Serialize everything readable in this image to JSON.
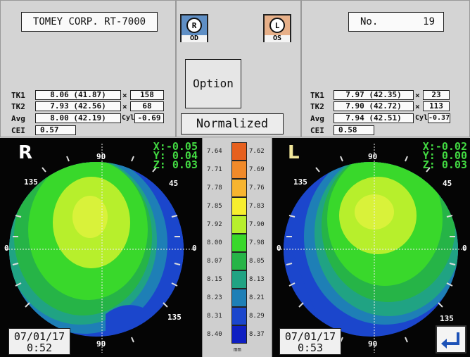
{
  "header": {
    "device": "TOMEY CORP. RT-7000",
    "no_label": "No.",
    "no_value": "19"
  },
  "eyes": {
    "right": {
      "letter": "R",
      "tag": "OD"
    },
    "left": {
      "letter": "L",
      "tag": "OS"
    }
  },
  "buttons": {
    "option": "Option",
    "normalized": "Normalized"
  },
  "right_data": {
    "tk1_label": "TK1",
    "tk1_value": "8.06 (41.87)",
    "tk1_x": "×",
    "tk1_axis": "158",
    "tk2_label": "TK2",
    "tk2_value": "7.93 (42.56)",
    "tk2_x": "×",
    "tk2_axis": "68",
    "avg_label": "Avg",
    "avg_value": "8.00 (42.19)",
    "cyl_label": "Cyl",
    "cyl_value": "-0.69",
    "cei_label": "CEI",
    "cei_value": "0.57"
  },
  "left_data": {
    "tk1_label": "TK1",
    "tk1_value": "7.97 (42.35)",
    "tk1_x": "×",
    "tk1_axis": "23",
    "tk2_label": "TK2",
    "tk2_value": "7.90 (42.72)",
    "tk2_x": "×",
    "tk2_axis": "113",
    "avg_label": "Avg",
    "avg_value": "7.94 (42.51)",
    "cyl_label": "Cyl",
    "cyl_value": "-0.37",
    "cei_label": "CEI",
    "cei_value": "0.58"
  },
  "right_map": {
    "eye": "R",
    "x": "X:-0.05",
    "y": "Y: 0.04",
    "z": "Z: 0.03",
    "angles": {
      "a90_top": "90",
      "a135": "135",
      "a45": "45",
      "a0_left": "0",
      "a0_right": "0",
      "a135_bottom": "135",
      "a90_bottom": "90"
    },
    "date": "07/01/17",
    "time": "0:52"
  },
  "left_map": {
    "eye": "L",
    "x": "X:-0.02",
    "y": "Y: 0.00",
    "z": "Z: 0.03",
    "angles": {
      "a90_top": "90",
      "a135": "135",
      "a45": "45",
      "a0_left": "0",
      "a0_right": "0",
      "a135_bottom": "135",
      "a90_bottom": "90"
    },
    "date": "07/01/17",
    "time": "0:53"
  },
  "scale": {
    "unit": "mm",
    "rows": [
      {
        "left": "7.64",
        "right": "7.62",
        "color": "#e6601e"
      },
      {
        "left": "7.71",
        "right": "7.69",
        "color": "#f08a2a"
      },
      {
        "left": "7.78",
        "right": "7.76",
        "color": "#f7b42f"
      },
      {
        "left": "7.85",
        "right": "7.83",
        "color": "#f7ee2e"
      },
      {
        "left": "7.92",
        "right": "7.90",
        "color": "#b7ef2c"
      },
      {
        "left": "8.00",
        "right": "7.98",
        "color": "#39d82b"
      },
      {
        "left": "8.07",
        "right": "8.05",
        "color": "#26b447"
      },
      {
        "left": "8.15",
        "right": "8.13",
        "color": "#20a383"
      },
      {
        "left": "8.23",
        "right": "8.21",
        "color": "#1e7fb6"
      },
      {
        "left": "8.31",
        "right": "8.29",
        "color": "#1b46cc"
      },
      {
        "left": "8.40",
        "right": "8.37",
        "color": "#0f1fc2"
      }
    ]
  },
  "return_icon": "return-arrow-icon"
}
